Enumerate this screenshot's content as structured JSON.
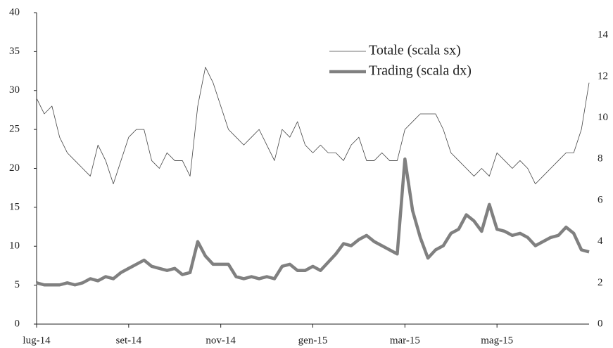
{
  "chart_data": {
    "type": "line",
    "categories": [
      "lug-14",
      null,
      null,
      null,
      null,
      null,
      null,
      null,
      null,
      null,
      null,
      null,
      "set-14",
      null,
      null,
      null,
      null,
      null,
      null,
      null,
      null,
      null,
      null,
      null,
      "nov-14",
      null,
      null,
      null,
      null,
      null,
      null,
      null,
      null,
      null,
      null,
      null,
      "gen-15",
      null,
      null,
      null,
      null,
      null,
      null,
      null,
      null,
      null,
      null,
      null,
      "mar-15",
      null,
      null,
      null,
      null,
      null,
      null,
      null,
      null,
      null,
      null,
      null,
      "mag-15",
      null,
      null,
      null,
      null,
      null,
      null,
      null,
      null,
      null,
      null,
      null,
      null
    ],
    "series": [
      {
        "name": "Totale (scala sx)",
        "color": "#444444",
        "axis": "y",
        "values": [
          29,
          27,
          28,
          24,
          22,
          21,
          20,
          19,
          23,
          21,
          18,
          21,
          24,
          25,
          25,
          21,
          20,
          22,
          21,
          21,
          19,
          28,
          33,
          31,
          28,
          25,
          24,
          23,
          24,
          25,
          23,
          21,
          25,
          24,
          26,
          23,
          22,
          23,
          22,
          22,
          21,
          23,
          24,
          21,
          21,
          22,
          21,
          21,
          25,
          26,
          27,
          27,
          27,
          25,
          22,
          21,
          20,
          19,
          20,
          19,
          22,
          21,
          20,
          21,
          20,
          18,
          19,
          20,
          21,
          22,
          22,
          25,
          31
        ]
      },
      {
        "name": "Trading (scala dx)",
        "color": "#808080",
        "axis": "y2",
        "values": [
          2.0,
          1.9,
          1.9,
          1.9,
          2.0,
          1.9,
          2.0,
          2.2,
          2.1,
          2.3,
          2.2,
          2.5,
          2.7,
          2.9,
          3.1,
          2.8,
          2.7,
          2.6,
          2.7,
          2.4,
          2.5,
          4.0,
          3.3,
          2.9,
          2.9,
          2.9,
          2.3,
          2.2,
          2.3,
          2.2,
          2.3,
          2.2,
          2.8,
          2.9,
          2.6,
          2.6,
          2.8,
          2.6,
          3.0,
          3.4,
          3.9,
          3.8,
          4.1,
          4.3,
          4.0,
          3.8,
          3.6,
          3.4,
          8.0,
          5.5,
          4.2,
          3.2,
          3.6,
          3.8,
          4.4,
          4.6,
          5.3,
          5.0,
          4.5,
          5.8,
          4.6,
          4.5,
          4.3,
          4.4,
          4.2,
          3.8,
          4.0,
          4.2,
          4.3,
          4.7,
          4.4,
          3.6,
          3.5
        ]
      }
    ],
    "ylim": [
      0,
      40
    ],
    "yticks": [
      0,
      5,
      10,
      15,
      20,
      25,
      30,
      35,
      40
    ],
    "y2lim": [
      0,
      15.1
    ],
    "y2ticks": [
      0,
      2,
      4,
      6,
      8,
      10,
      12,
      14
    ],
    "legend": "upper right"
  }
}
